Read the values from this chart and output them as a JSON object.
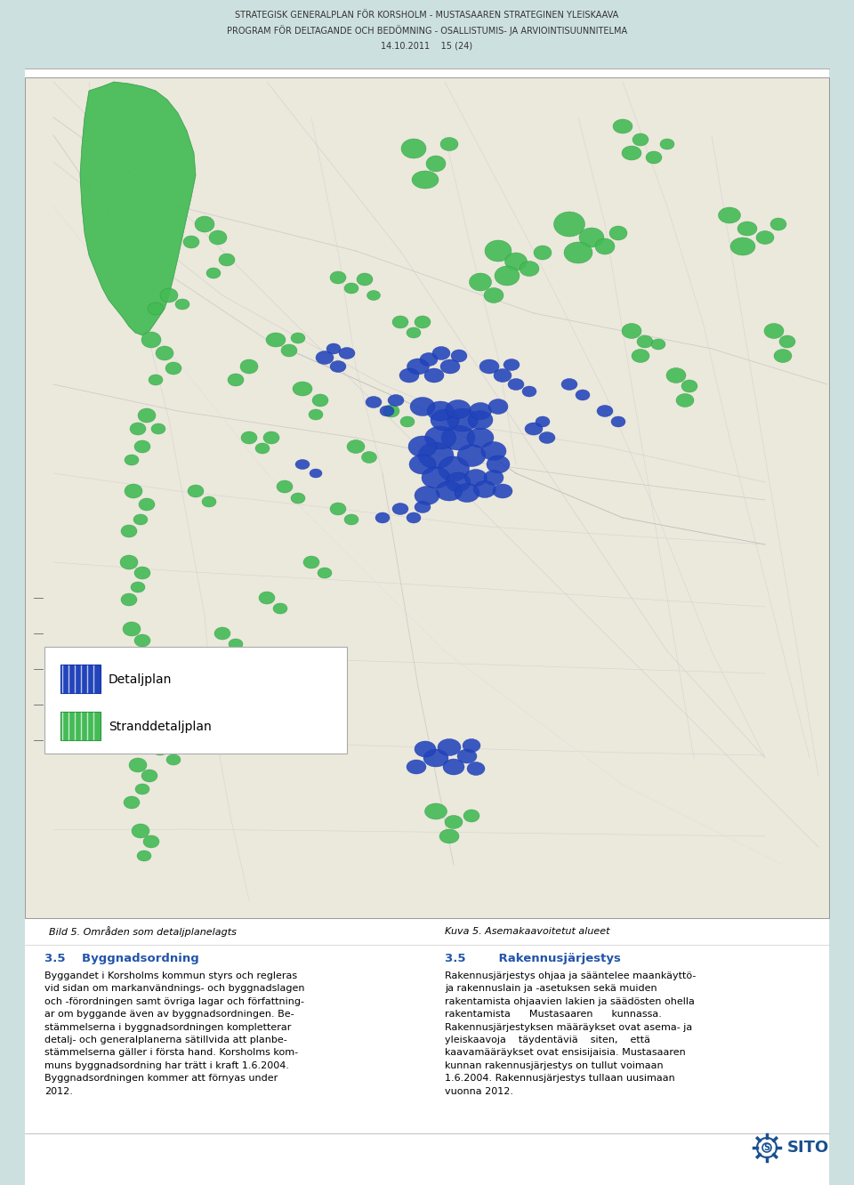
{
  "page_bg": "#cde0e0",
  "content_bg": "#ffffff",
  "header_line1": "STRATEGISK GENERALPLAN FÖR KORSHOLM - MUSTASAAREN STRATEGINEN YLEISKAAVA",
  "header_line2": "PROGRAM FÖR DELTAGANDE OCH BEDÖMNING - OSALLISTUMIS- JA ARVIOINTISUUNNITELMA",
  "header_line3": "14.10.2011    15 (24)",
  "header_fontsize": 7.0,
  "map_left_caption": "Bild 5. Områden som detaljplanelagts",
  "map_right_caption": "Kuva 5. Asemakaavoitetut alueet",
  "caption_fontsize": 8.0,
  "legend_item1_label": "Detaljplan",
  "legend_item2_label": "Stranddetaljplan",
  "legend_fontsize": 10,
  "section_left_title": "3.5    Byggnadsordning",
  "section_right_title": "3.5        Rakennusjärjestys",
  "section_title_color": "#2255aa",
  "section_title_fontsize": 9.5,
  "left_body": "Byggandet i Korsholms kommun styrs och regleras\nvid sidan om markanvändnings- och byggnadslagen\noch -förordningen samt övriga lagar och författning-\nar om byggande även av byggnadsordningen. Be-\nstämmelserna i byggnadsordningen kompletterar\ndetalj- och generalplanerna sätillvida att planbe-\nstämmelserna gäller i första hand. Korsholms kom-\nmuns byggnadsordning har trätt i kraft 1.6.2004.\nBygnadsordningen kommer att förnyas under\n2012.",
  "right_body": "Rakennusjärjestys ohjaa ja sääntelee maankäyttö-\nja rakennuslain ja -asetuksen sekä muiden\nrakentamista ohjaavien lakien ja säädösten ohella\nrakentamista      Mustasaaren      kunnassa.\nRakennusjärjestyksen määräykset ovat asema- ja\nyleiskaavoja    täydentäviä    siten,    että\nkaavamääräykset ovat ensisijaisia. Mustasaaren\nkunnan rakennusjärjestys on tullut voimaan\n1.6.2004. Rakennusjärjestys tullaan uusimaan\nvuonna 2012.",
  "body_fontsize": 8.0,
  "sito_color": "#1a5090"
}
